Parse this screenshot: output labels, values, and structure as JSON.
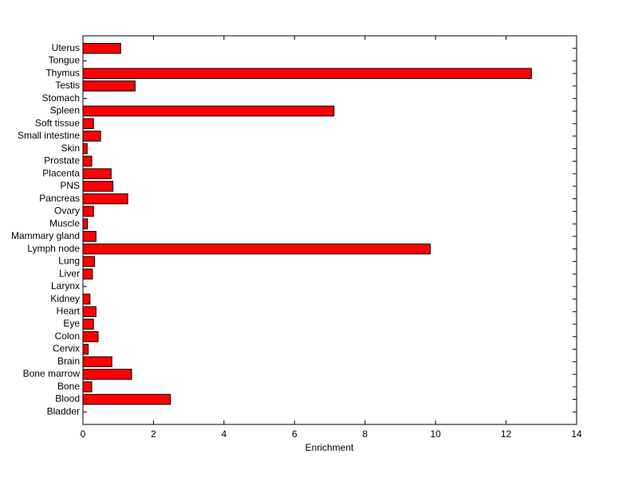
{
  "chart_data": {
    "type": "barh",
    "xlabel": "Enrichment",
    "categories": [
      "Bladder",
      "Blood",
      "Bone",
      "Bone marrow",
      "Brain",
      "Cervix",
      "Colon",
      "Eye",
      "Heart",
      "Kidney",
      "Larynx",
      "Liver",
      "Lung",
      "Lymph node",
      "Mammary gland",
      "Muscle",
      "Ovary",
      "Pancreas",
      "PNS",
      "Placenta",
      "Prostate",
      "Skin",
      "Small intestine",
      "Soft tissue",
      "Spleen",
      "Stomach",
      "Testis",
      "Thymus",
      "Tongue",
      "Uterus"
    ],
    "values": [
      0,
      2.48,
      0.25,
      1.38,
      0.82,
      0.15,
      0.43,
      0.3,
      0.37,
      0.2,
      0,
      0.27,
      0.33,
      9.85,
      0.37,
      0.13,
      0.3,
      1.27,
      0.85,
      0.8,
      0.25,
      0.12,
      0.5,
      0.3,
      7.12,
      0,
      1.48,
      12.72,
      0,
      1.07
    ],
    "color": "#ff0000",
    "xlim": [
      0,
      14
    ],
    "xticks": [
      0,
      2,
      4,
      6,
      8,
      10,
      12,
      14
    ]
  }
}
